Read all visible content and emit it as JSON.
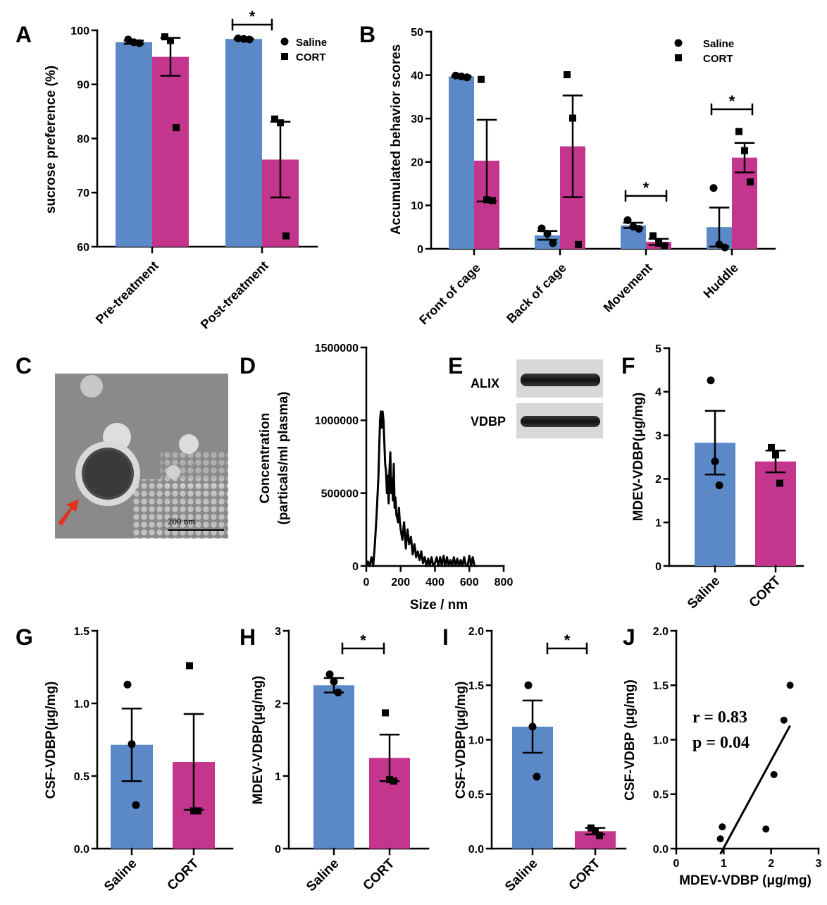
{
  "colors": {
    "saline": "#5b89c8",
    "cort": "#c4358e",
    "ink": "#000000",
    "arrow": "#e2321f"
  },
  "panels": {
    "A": {
      "letter": "A",
      "ylabel": "sucrose preference (%)",
      "categories": [
        "Pre-treatment",
        "Post-treatment"
      ],
      "yticks": [
        "60",
        "70",
        "80",
        "90",
        "100"
      ],
      "sig": "*",
      "legend": [
        {
          "marker": "circle",
          "label": "Saline"
        },
        {
          "marker": "square",
          "label": "CORT"
        }
      ]
    },
    "B": {
      "letter": "B",
      "ylabel": "Accumulated behavior scores",
      "categories": [
        "Front of cage",
        "Back of cage",
        "Movement",
        "Huddle"
      ],
      "yticks": [
        "0",
        "10",
        "20",
        "30",
        "40",
        "50"
      ],
      "sig": [
        "*",
        "*"
      ],
      "legend": [
        {
          "marker": "circle",
          "label": "Saline"
        },
        {
          "marker": "square",
          "label": "CORT"
        }
      ]
    },
    "C": {
      "letter": "C",
      "scalebar": "200 nm"
    },
    "D": {
      "letter": "D",
      "ylabel1": "Concentration",
      "ylabel2": "(particals/ml plasma)",
      "xlabel": "Size / nm",
      "yticks": [
        "0",
        "500000",
        "1000000",
        "1500000"
      ],
      "xticks": [
        "0",
        "200",
        "400",
        "600",
        "800"
      ]
    },
    "E": {
      "letter": "E",
      "bands": [
        "ALIX",
        "VDBP"
      ]
    },
    "F": {
      "letter": "F",
      "ylabel": "MDEV-VDBP(μg/mg)",
      "categories": [
        "Saline",
        "CORT"
      ],
      "yticks": [
        "0",
        "1",
        "2",
        "3",
        "4",
        "5"
      ]
    },
    "G": {
      "letter": "G",
      "ylabel": "CSF-VDBP(μg/mg)",
      "categories": [
        "Saline",
        "CORT"
      ],
      "yticks": [
        "0.0",
        "0.5",
        "1.0",
        "1.5"
      ]
    },
    "H": {
      "letter": "H",
      "ylabel": "MDEV-VDBP(μg/mg)",
      "categories": [
        "Saline",
        "CORT"
      ],
      "yticks": [
        "0",
        "1",
        "2",
        "3"
      ],
      "sig": "*"
    },
    "I": {
      "letter": "I",
      "ylabel": "CSF-VDBP(μg/mg)",
      "categories": [
        "Saline",
        "CORT"
      ],
      "yticks": [
        "0.0",
        "0.5",
        "1.0",
        "1.5",
        "2.0"
      ],
      "sig": "*"
    },
    "J": {
      "letter": "J",
      "ylabel": "CSF-VDBP (μg/mg)",
      "xlabel": "MDEV-VDBP (μg/mg)",
      "yticks": [
        "0.0",
        "0.5",
        "1.0",
        "1.5",
        "2.0"
      ],
      "xticks": [
        "0",
        "1",
        "2",
        "3"
      ],
      "stat1": "r = 0.83",
      "stat2": "p = 0.04"
    }
  },
  "chart_data": [
    {
      "panel": "A",
      "type": "bar",
      "ylim": [
        60,
        100
      ],
      "categories": [
        "Pre-treatment",
        "Post-treatment"
      ],
      "series": [
        {
          "name": "Saline",
          "values": [
            97.8,
            98.4
          ],
          "sem": [
            0.3,
            0.1
          ],
          "points": [
            [
              98.3,
              97.8,
              97.6
            ],
            [
              98.5,
              98.4,
              98.3
            ]
          ]
        },
        {
          "name": "CORT",
          "values": [
            95.1,
            76.1
          ],
          "sem": [
            3.5,
            7.0
          ],
          "points": [
            [
              98.8,
              98.1,
              82.0
            ],
            [
              83.6,
              82.9,
              62.0
            ]
          ]
        }
      ],
      "significance": [
        {
          "category": "Post-treatment",
          "label": "*"
        }
      ]
    },
    {
      "panel": "B",
      "type": "bar",
      "ylim": [
        0,
        50
      ],
      "categories": [
        "Front of cage",
        "Back of cage",
        "Movement",
        "Huddle"
      ],
      "series": [
        {
          "name": "Saline",
          "values": [
            39.7,
            3.1,
            5.4,
            5.0
          ],
          "sem": [
            0.2,
            1.0,
            0.6,
            4.5
          ],
          "points": [
            [
              39.9,
              39.7,
              39.5
            ],
            [
              4.7,
              3.5,
              1.3
            ],
            [
              6.6,
              5.1,
              4.6
            ],
            [
              14.0,
              1.0,
              0.3
            ]
          ]
        },
        {
          "name": "CORT",
          "values": [
            20.3,
            23.6,
            1.6,
            21.0
          ],
          "sem": [
            9.4,
            11.7,
            0.7,
            3.4
          ],
          "points": [
            [
              39.0,
              11.3,
              11.1
            ],
            [
              40.1,
              30.1,
              1.0
            ],
            [
              3.0,
              1.3,
              0.7
            ],
            [
              27.0,
              22.6,
              15.4
            ]
          ]
        }
      ],
      "significance": [
        {
          "category": "Movement",
          "label": "*"
        },
        {
          "category": "Huddle",
          "label": "*"
        }
      ]
    },
    {
      "panel": "D",
      "type": "line",
      "xlim": [
        0,
        800
      ],
      "ylim": [
        0,
        1500000
      ],
      "x": [
        0,
        10,
        20,
        30,
        40,
        50,
        60,
        70,
        75,
        80,
        85,
        90,
        95,
        100,
        105,
        110,
        115,
        120,
        125,
        130,
        135,
        140,
        145,
        150,
        155,
        160,
        165,
        170,
        175,
        180,
        185,
        190,
        195,
        200,
        210,
        220,
        230,
        240,
        250,
        260,
        270,
        280,
        290,
        300,
        310,
        320,
        330,
        340,
        350,
        360,
        370,
        380,
        390,
        400,
        410,
        420,
        430,
        440,
        450,
        460,
        470,
        480,
        490,
        500,
        510,
        520,
        530,
        540,
        550,
        560,
        570,
        580,
        590,
        600,
        610,
        620,
        630,
        640
      ],
      "y": [
        0,
        30000,
        0,
        60000,
        0,
        150000,
        350000,
        600000,
        800000,
        1000000,
        1060000,
        950000,
        1060000,
        1000000,
        850000,
        700000,
        650000,
        500000,
        620000,
        430000,
        660000,
        780000,
        500000,
        600000,
        450000,
        700000,
        400000,
        470000,
        350000,
        330000,
        300000,
        400000,
        310000,
        250000,
        180000,
        300000,
        120000,
        250000,
        150000,
        200000,
        80000,
        150000,
        60000,
        100000,
        40000,
        100000,
        20000,
        60000,
        0,
        50000,
        0,
        60000,
        0,
        20000,
        60000,
        0,
        60000,
        0,
        70000,
        0,
        60000,
        0,
        40000,
        0,
        60000,
        0,
        50000,
        0,
        40000,
        0,
        60000,
        0,
        0,
        70000,
        0,
        60000,
        0,
        0
      ]
    },
    {
      "panel": "F",
      "type": "bar",
      "ylim": [
        0,
        5
      ],
      "categories": [
        "Saline",
        "CORT"
      ],
      "values": [
        2.83,
        2.4
      ],
      "sem": [
        0.73,
        0.25
      ],
      "points": [
        [
          4.26,
          2.4,
          1.85
        ],
        [
          2.72,
          2.55,
          1.9
        ]
      ]
    },
    {
      "panel": "G",
      "type": "bar",
      "ylim": [
        0,
        1.5
      ],
      "categories": [
        "Saline",
        "CORT"
      ],
      "values": [
        0.715,
        0.597
      ],
      "sem": [
        0.25,
        0.33
      ],
      "points": [
        [
          1.13,
          0.72,
          0.3
        ],
        [
          1.26,
          0.26,
          0.26
        ]
      ]
    },
    {
      "panel": "H",
      "type": "bar",
      "ylim": [
        0,
        3
      ],
      "categories": [
        "Saline",
        "CORT"
      ],
      "values": [
        2.25,
        1.25
      ],
      "sem": [
        0.1,
        0.32
      ],
      "points": [
        [
          2.4,
          2.3,
          2.15
        ],
        [
          1.87,
          0.95,
          0.93
        ]
      ],
      "significance": [
        {
          "label": "*"
        }
      ]
    },
    {
      "panel": "I",
      "type": "bar",
      "ylim": [
        0,
        2.0
      ],
      "categories": [
        "Saline",
        "CORT"
      ],
      "values": [
        1.12,
        0.16
      ],
      "sem": [
        0.24,
        0.03
      ],
      "points": [
        [
          1.5,
          1.12,
          0.66
        ],
        [
          0.19,
          0.16,
          0.12
        ]
      ],
      "significance": [
        {
          "label": "*"
        }
      ]
    },
    {
      "panel": "J",
      "type": "scatter",
      "xlim": [
        0,
        3
      ],
      "ylim": [
        0,
        2.0
      ],
      "x": [
        0.93,
        0.97,
        1.89,
        2.06,
        2.27,
        2.4
      ],
      "y": [
        0.09,
        0.2,
        0.18,
        0.68,
        1.18,
        1.5
      ],
      "fit": {
        "x": [
          0.93,
          2.4
        ],
        "y": [
          -0.05,
          1.13
        ]
      }
    }
  ]
}
